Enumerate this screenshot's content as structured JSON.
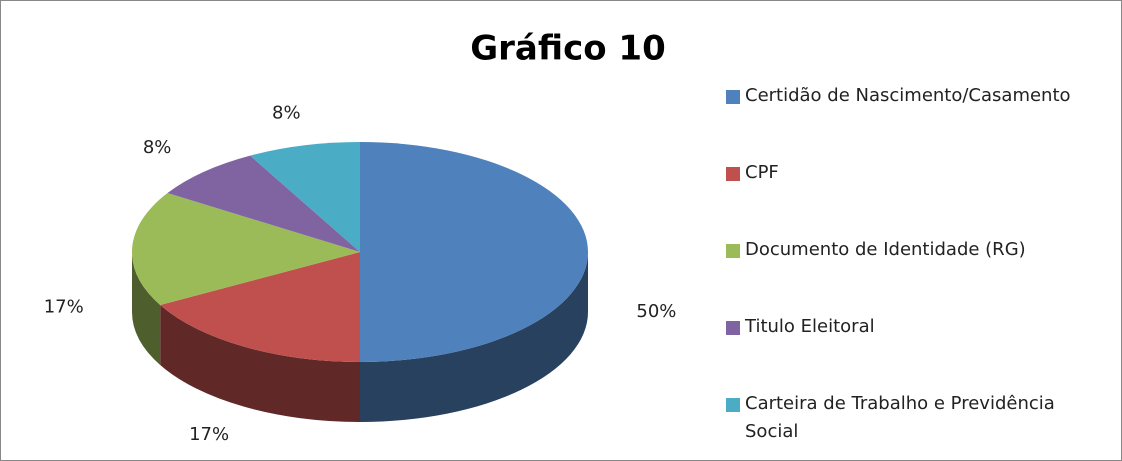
{
  "chart_data": {
    "type": "pie3d",
    "title": "Gráfico 10",
    "categories": [
      "Certidão de Nascimento/Casamento",
      "CPF",
      "Documento de Identidade (RG)",
      "Titulo Eleitoral",
      "Carteira de Trabalho e Previdência Social"
    ],
    "values": [
      50,
      17,
      17,
      8,
      8
    ],
    "value_labels": [
      "50%",
      "17%",
      "17%",
      "8%",
      "8%"
    ],
    "colors": [
      "#4f81bd",
      "#c0504d",
      "#9bbb59",
      "#8064a2",
      "#4bacc6"
    ],
    "legend": "right"
  }
}
